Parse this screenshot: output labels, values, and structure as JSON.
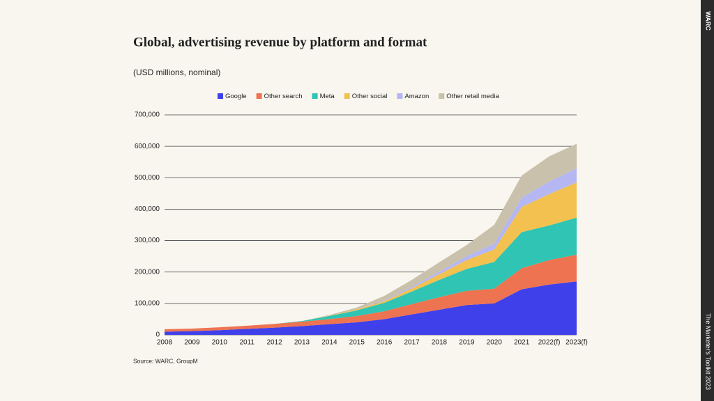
{
  "chart_data": {
    "type": "stacked_area",
    "title": "Global, advertising revenue by platform and format",
    "subtitle": "(USD millions, nominal)",
    "source": "Source: WARC, GroupM",
    "brand": "WARC",
    "footer": "The Marketer's Toolkit 2023",
    "categories": [
      "2008",
      "2009",
      "2010",
      "2011",
      "2012",
      "2013",
      "2014",
      "2015",
      "2016",
      "2017",
      "2018",
      "2019",
      "2020",
      "2021",
      "2022(f)",
      "2023(f)"
    ],
    "ylim": [
      0,
      700000
    ],
    "yticks": [
      0,
      {
        "value": 100000,
        "label": "100,000"
      },
      {
        "value": 200000,
        "label": "200,000"
      },
      {
        "value": 300000,
        "label": "300,000"
      },
      {
        "value": 400000,
        "label": "400,000"
      },
      {
        "value": 500000,
        "label": "500,000"
      },
      {
        "value": 600000,
        "label": "600,000"
      },
      {
        "value": 700000,
        "label": "700,000"
      }
    ],
    "grid": true,
    "legend": "top",
    "series": [
      {
        "name": "Google",
        "color": "#4040ea",
        "values": [
          10000,
          12000,
          15000,
          19000,
          23000,
          28000,
          34000,
          40000,
          50000,
          65000,
          80000,
          95000,
          100000,
          145000,
          160000,
          170000
        ]
      },
      {
        "name": "Other search",
        "color": "#ee7350",
        "values": [
          8000,
          8000,
          9000,
          10000,
          12000,
          14000,
          16000,
          20000,
          25000,
          33000,
          40000,
          45000,
          47000,
          67000,
          78000,
          85000
        ]
      },
      {
        "name": "Meta",
        "color": "#2fc4b4",
        "values": [
          0,
          0,
          0,
          0,
          0,
          2000,
          10000,
          18000,
          27000,
          40000,
          55000,
          70000,
          85000,
          115000,
          110000,
          118000
        ]
      },
      {
        "name": "Other social",
        "color": "#f2c14f",
        "values": [
          0,
          0,
          0,
          0,
          0,
          0,
          1000,
          3000,
          5000,
          10000,
          18000,
          28000,
          40000,
          80000,
          100000,
          112000
        ]
      },
      {
        "name": "Amazon",
        "color": "#b5b7f3",
        "values": [
          0,
          0,
          0,
          0,
          0,
          0,
          0,
          0,
          2000,
          5000,
          8000,
          13000,
          18000,
          30000,
          40000,
          45000
        ]
      },
      {
        "name": "Other retail media",
        "color": "#c9c1ab",
        "values": [
          0,
          0,
          0,
          0,
          0,
          0,
          2000,
          6000,
          15000,
          22000,
          30000,
          35000,
          60000,
          70000,
          80000,
          78000
        ]
      }
    ]
  }
}
